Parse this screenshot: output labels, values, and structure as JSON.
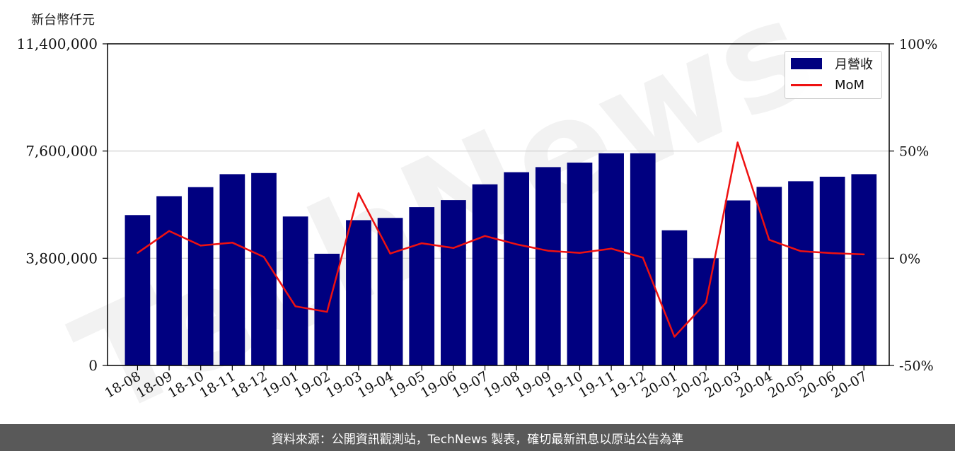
{
  "unit_label": "新台幣仟元",
  "footer_text": "資料來源：公開資訊觀測站，TechNews 製表，確切最新訊息以原站公告為準",
  "watermark_text": "TechNews",
  "colors": {
    "bar": "#000080",
    "line": "#ee1111",
    "footer_bg": "#595959",
    "grid": "#cccccc"
  },
  "chart_data": {
    "type": "bar",
    "categories": [
      "18-08",
      "18-09",
      "18-10",
      "18-11",
      "18-12",
      "19-01",
      "19-02",
      "19-03",
      "19-04",
      "19-05",
      "19-06",
      "19-07",
      "19-08",
      "19-09",
      "19-10",
      "19-11",
      "19-12",
      "20-01",
      "20-02",
      "20-03",
      "20-04",
      "20-05",
      "20-06",
      "20-07"
    ],
    "series": [
      {
        "name": "月營收",
        "type": "bar",
        "axis": "left",
        "values": [
          5330000,
          6000000,
          6320000,
          6780000,
          6820000,
          5280000,
          3960000,
          5150000,
          5230000,
          5610000,
          5860000,
          6420000,
          6850000,
          7030000,
          7190000,
          7520000,
          7520000,
          4790000,
          3800000,
          5850000,
          6330000,
          6530000,
          6690000,
          6780000
        ]
      },
      {
        "name": "MoM",
        "type": "line",
        "axis": "right",
        "values": [
          2.5,
          12.7,
          5.9,
          7.3,
          0.6,
          -22.4,
          -25.0,
          30.3,
          2.2,
          7.0,
          4.8,
          10.4,
          6.5,
          3.5,
          2.5,
          4.5,
          0.3,
          -36.6,
          -20.7,
          54.0,
          8.6,
          3.3,
          2.4,
          1.8
        ]
      }
    ],
    "y_left": {
      "ticks": [
        0,
        3800000,
        7600000,
        11400000
      ],
      "tick_labels": [
        "0",
        "3,800,000",
        "7,600,000",
        "11,400,000"
      ],
      "ylim": [
        0,
        11400000
      ]
    },
    "y_right": {
      "ticks": [
        -50,
        0,
        50,
        100
      ],
      "tick_labels": [
        "-50%",
        "0%",
        "50%",
        "100%"
      ],
      "ylim": [
        -50,
        100
      ]
    },
    "grid": "horizontal",
    "legend": {
      "placement": "top-right",
      "entries": [
        "月營收",
        "MoM"
      ]
    }
  }
}
